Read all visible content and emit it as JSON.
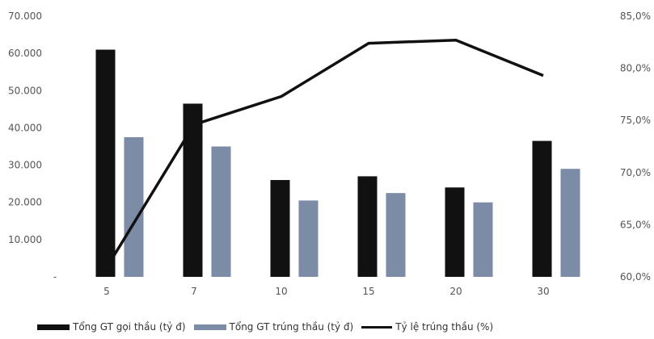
{
  "chart_data": {
    "type": "bar",
    "categories": [
      "5",
      "7",
      "10",
      "15",
      "20",
      "30"
    ],
    "series": [
      {
        "name": "Tổng GT gói thầu (tỷ đ)",
        "kind": "bar",
        "axis": "left",
        "color": "#111111",
        "values": [
          61000,
          46500,
          26000,
          27000,
          24000,
          36500
        ]
      },
      {
        "name": "Tổng GT trúng thầu (tỷ đ)",
        "kind": "bar",
        "axis": "left",
        "color": "#7c8ba6",
        "values": [
          37500,
          35000,
          20500,
          22500,
          20000,
          29000
        ]
      },
      {
        "name": "Tỷ lệ trúng thầu (%)",
        "kind": "line",
        "axis": "right",
        "color": "#111111",
        "values": [
          60.9,
          74.6,
          77.3,
          82.4,
          82.7,
          79.3
        ]
      }
    ],
    "ylim_left": [
      0,
      70000
    ],
    "ylim_right": [
      60,
      85
    ],
    "left_ticks": [
      "70.000",
      "60.000",
      "50.000",
      "40.000",
      "30.000",
      "20.000",
      "10.000",
      "-"
    ],
    "right_ticks": [
      "85,0%",
      "80,0%",
      "75,0%",
      "70,0%",
      "65,0%",
      "60,0%"
    ],
    "legend_position": "bottom",
    "grid": false
  },
  "legend": {
    "bar1": "Tổng GT gọi thầu (tỷ đ)",
    "bar2": "Tổng GT trúng thầu (tỷ đ)",
    "line": "Tỷ lệ trúng thầu (%)"
  }
}
